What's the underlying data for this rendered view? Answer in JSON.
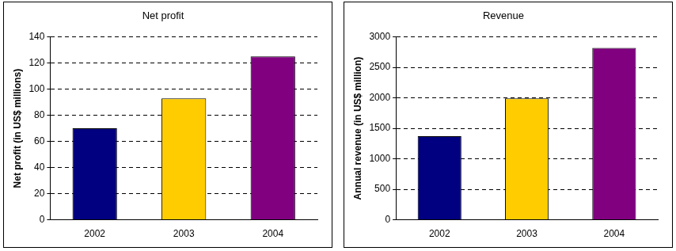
{
  "chart_data": [
    {
      "type": "bar",
      "title": "Net profit",
      "y_label": "Net profit (in US$ millions)",
      "categories": [
        "2002",
        "2003",
        "2004"
      ],
      "values": [
        70,
        93,
        125
      ],
      "colors": [
        "#000080",
        "#ffcc00",
        "#800080"
      ],
      "ylim": [
        0,
        140
      ],
      "yticks": [
        0,
        20,
        40,
        60,
        80,
        100,
        120,
        140
      ],
      "grid": true
    },
    {
      "type": "bar",
      "title": "Revenue",
      "y_label": "Annual revenue (in US$ million)",
      "categories": [
        "2002",
        "2003",
        "2004"
      ],
      "values": [
        1370,
        1990,
        2820
      ],
      "colors": [
        "#000080",
        "#ffcc00",
        "#800080"
      ],
      "ylim": [
        0,
        3000
      ],
      "yticks": [
        0,
        500,
        1000,
        1500,
        2000,
        2500,
        3000
      ],
      "grid": true
    }
  ]
}
